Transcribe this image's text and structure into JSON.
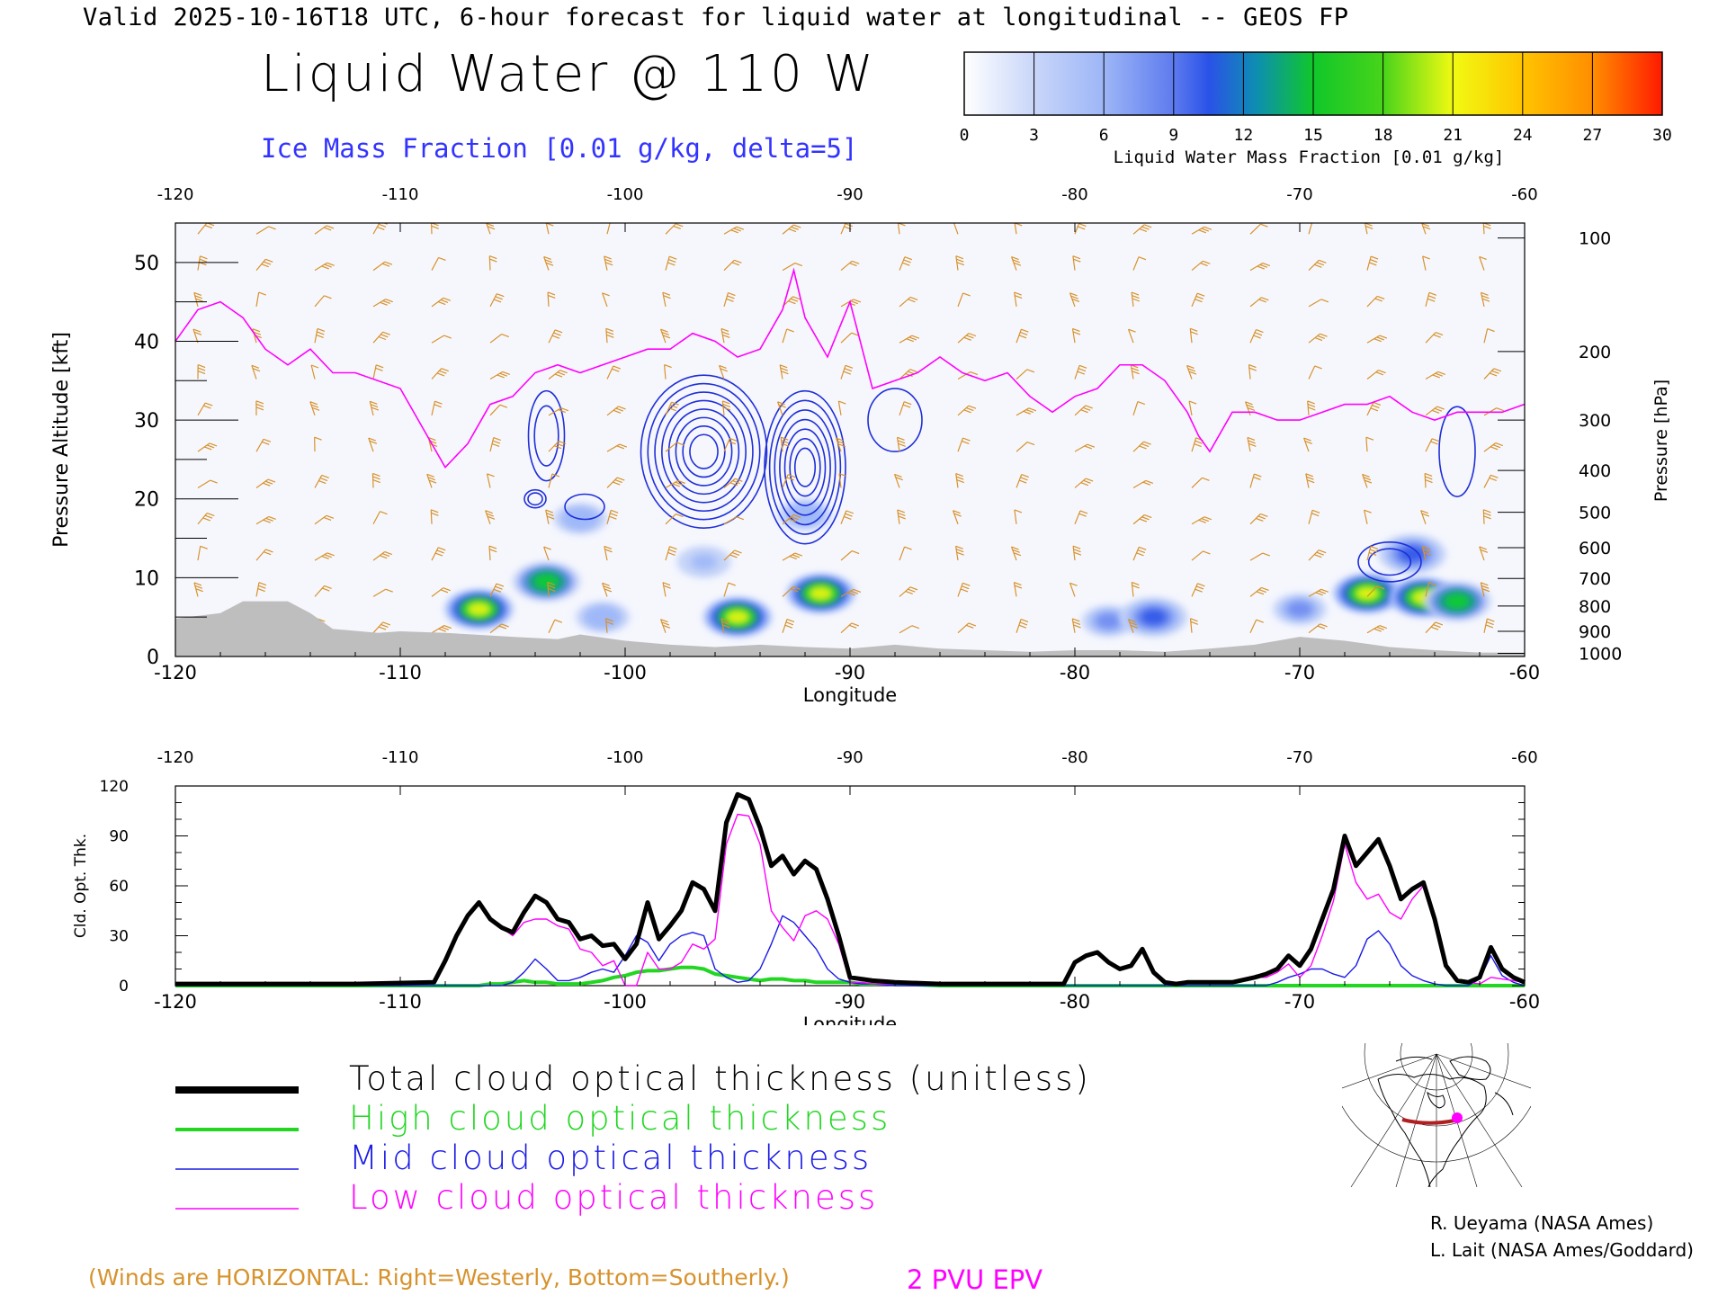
{
  "header": {
    "valid_line": "Valid 2025-10-16T18 UTC, 6-hour forecast for liquid water at longitudinal -- GEOS FP",
    "title": "Liquid Water @ 110 W",
    "ice_subtitle": "Ice Mass Fraction [0.01 g/kg, delta=5]"
  },
  "colorbar": {
    "title": "Liquid Water Mass Fraction [0.01 g/kg]",
    "ticks": [
      "0",
      "3",
      "6",
      "9",
      "12",
      "15",
      "18",
      "21",
      "24",
      "27",
      "30"
    ],
    "colors": [
      "#f4f6ff",
      "#c3d2f7",
      "#9fb8f8",
      "#6f8bf0",
      "#2f56e8",
      "#0f9a8a",
      "#10cf2e",
      "#7bd618",
      "#eff711",
      "#ffb400",
      "#ff8c00",
      "#ff1900"
    ]
  },
  "colors": {
    "ice_contour": "#1f2fd8",
    "epv": "#ff00ff",
    "wind": "#d7922c",
    "terrain": "#bebebe",
    "total": "#000000",
    "high": "#22d622",
    "mid": "#1a1ae6",
    "low": "#ff00ff"
  },
  "chart_data": [
    {
      "type": "heatmap",
      "title": "Liquid Water @ 110 W",
      "xlabel": "Longitude",
      "ylabel_left": "Pressure Altitude [kft]",
      "ylabel_right": "Pressure [hPa]",
      "xlim": [
        -120,
        -60
      ],
      "ylim_kft": [
        0,
        55
      ],
      "x_ticks": [
        "-120",
        "-110",
        "-100",
        "-90",
        "-80",
        "-70",
        "-60"
      ],
      "y_ticks": [
        "0",
        "10",
        "20",
        "30",
        "40",
        "50"
      ],
      "pressure_ticks": [
        "100",
        "200",
        "300",
        "400",
        "500",
        "600",
        "700",
        "800",
        "900",
        "1000"
      ],
      "pressure_tick_kft": [
        53.1,
        38.7,
        30.0,
        23.6,
        18.3,
        13.8,
        9.9,
        6.4,
        3.2,
        0.4
      ],
      "liquid_water_blobs": [
        {
          "lon": -106.5,
          "kft": 6.0,
          "max": 22
        },
        {
          "lon": -103.5,
          "kft": 9.5,
          "max": 19
        },
        {
          "lon": -101.0,
          "kft": 5.0,
          "max": 8
        },
        {
          "lon": -95.0,
          "kft": 5.0,
          "max": 23
        },
        {
          "lon": -91.3,
          "kft": 8.0,
          "max": 24
        },
        {
          "lon": -96.5,
          "kft": 12.0,
          "max": 7
        },
        {
          "lon": -92.0,
          "kft": 18.0,
          "max": 8
        },
        {
          "lon": -102.0,
          "kft": 17.5,
          "max": 8
        },
        {
          "lon": -78.5,
          "kft": 4.5,
          "max": 10
        },
        {
          "lon": -76.5,
          "kft": 5.0,
          "max": 13
        },
        {
          "lon": -67.0,
          "kft": 8.0,
          "max": 22
        },
        {
          "lon": -64.5,
          "kft": 7.5,
          "max": 22
        },
        {
          "lon": -63.0,
          "kft": 7.0,
          "max": 19
        },
        {
          "lon": -65.0,
          "kft": 13.0,
          "max": 11
        },
        {
          "lon": -70.0,
          "kft": 6.0,
          "max": 9
        }
      ],
      "epv_2pvu_line": {
        "lon": [
          -120,
          -119,
          -118,
          -117,
          -116,
          -115,
          -114,
          -113,
          -112,
          -110,
          -109,
          -108,
          -107,
          -106,
          -105,
          -104,
          -103,
          -102,
          -101,
          -100,
          -99,
          -98,
          -97,
          -96,
          -95,
          -94,
          -93,
          -92.5,
          -92,
          -91,
          -90,
          -89,
          -88,
          -87,
          -86,
          -85,
          -84,
          -83,
          -82,
          -81,
          -80,
          -79,
          -78,
          -77,
          -76,
          -75,
          -74.5,
          -74,
          -73,
          -72,
          -71,
          -70,
          -69,
          -68,
          -67,
          -66,
          -65,
          -64,
          -63,
          -62,
          -61,
          -60
        ],
        "kft": [
          40,
          44,
          45,
          43,
          39,
          37,
          39,
          36,
          36,
          34,
          29,
          24,
          27,
          32,
          33,
          36,
          37,
          36,
          37,
          38,
          39,
          39,
          41,
          40,
          38,
          39,
          44,
          49,
          43,
          38,
          45,
          34,
          35,
          36,
          38,
          36,
          35,
          36,
          33,
          31,
          33,
          34,
          37,
          37,
          35,
          31,
          28,
          26,
          31,
          31,
          30,
          30,
          31,
          32,
          32,
          33,
          31,
          30,
          31,
          31,
          31,
          32
        ]
      },
      "terrain_kft": {
        "lon": [
          -120,
          -118,
          -117,
          -115,
          -114,
          -113,
          -111,
          -110,
          -108,
          -105,
          -103,
          -102,
          -100,
          -98,
          -96,
          -94,
          -92,
          -90,
          -88,
          -86,
          -84,
          -82,
          -80,
          -78,
          -76,
          -74,
          -72,
          -70,
          -68,
          -66,
          -64,
          -62,
          -60
        ],
        "kft": [
          4.8,
          5.5,
          7.0,
          7.0,
          5.5,
          3.5,
          3.0,
          3.2,
          3.0,
          2.5,
          2.2,
          2.8,
          2.0,
          1.5,
          1.2,
          1.5,
          1.2,
          1.0,
          1.5,
          1.0,
          0.8,
          0.6,
          0.8,
          0.8,
          0.6,
          1.0,
          1.5,
          2.5,
          2.0,
          1.2,
          0.8,
          0.5,
          0.5
        ]
      },
      "ice_contour_max": 45
    },
    {
      "type": "line",
      "xlabel": "Longitude",
      "ylabel": "Cld. Opt. Thk.",
      "xlim": [
        -120,
        -60
      ],
      "ylim": [
        0,
        120
      ],
      "x_ticks": [
        "-120",
        "-110",
        "-100",
        "-90",
        "-80",
        "-70",
        "-60"
      ],
      "y_ticks": [
        "0",
        "30",
        "60",
        "90",
        "120"
      ],
      "x": [
        -120,
        -112,
        -108.5,
        -108,
        -107.5,
        -107,
        -106.5,
        -106,
        -105.5,
        -105,
        -104.5,
        -104,
        -103.5,
        -103,
        -102.5,
        -102,
        -101.5,
        -101,
        -100.5,
        -100,
        -99.5,
        -99,
        -98.5,
        -98,
        -97.5,
        -97,
        -96.5,
        -96,
        -95.5,
        -95,
        -94.5,
        -94,
        -93.5,
        -93,
        -92.5,
        -92,
        -91.5,
        -91,
        -90.5,
        -90,
        -89.5,
        -89,
        -88,
        -86,
        -84,
        -82,
        -80.5,
        -80,
        -79.5,
        -79,
        -78.5,
        -78,
        -77.5,
        -77,
        -76.5,
        -76,
        -75.5,
        -75,
        -74,
        -73,
        -72,
        -71.5,
        -71,
        -70.5,
        -70,
        -69.5,
        -69,
        -68.5,
        -68,
        -67.5,
        -67,
        -66.5,
        -66,
        -65.5,
        -65,
        -64.5,
        -64,
        -63.5,
        -63,
        -62.5,
        -62,
        -61.5,
        -61,
        -60.5,
        -60
      ],
      "series": [
        {
          "name": "Total cloud optical thickness (unitless)",
          "values": [
            1,
            1,
            2,
            15,
            30,
            42,
            50,
            40,
            35,
            32,
            44,
            54,
            50,
            40,
            38,
            28,
            30,
            24,
            25,
            16,
            25,
            50,
            28,
            36,
            45,
            62,
            58,
            45,
            98,
            115,
            112,
            95,
            72,
            78,
            67,
            75,
            70,
            52,
            30,
            5,
            4,
            3,
            2,
            1,
            1,
            1,
            1,
            14,
            18,
            20,
            14,
            10,
            12,
            22,
            8,
            2,
            1,
            2,
            2,
            2,
            5,
            7,
            10,
            18,
            12,
            22,
            40,
            58,
            90,
            72,
            80,
            88,
            72,
            52,
            58,
            62,
            40,
            12,
            3,
            2,
            5,
            23,
            10,
            5,
            2
          ]
        },
        {
          "name": "High cloud optical thickness",
          "values": [
            0,
            0,
            0,
            0,
            0,
            0,
            0,
            1,
            1,
            2,
            3,
            2,
            2,
            1,
            1,
            1,
            2,
            3,
            5,
            6,
            8,
            9,
            9,
            10,
            11,
            11,
            10,
            7,
            6,
            5,
            4,
            3,
            4,
            4,
            3,
            3,
            2,
            2,
            2,
            2,
            1,
            1,
            1,
            0,
            0,
            0,
            0,
            0,
            0,
            0,
            0,
            0,
            0,
            0,
            0,
            0,
            0,
            0,
            0,
            0,
            0,
            0,
            0,
            0,
            0,
            0,
            0,
            0,
            0,
            0,
            0,
            0,
            0,
            0,
            0,
            0,
            0,
            0,
            0,
            0,
            0,
            0,
            0,
            0,
            0
          ]
        },
        {
          "name": "Mid cloud optical thickness",
          "values": [
            0,
            0,
            0,
            0,
            0,
            0,
            0,
            0,
            0,
            2,
            8,
            16,
            10,
            3,
            3,
            5,
            8,
            10,
            8,
            18,
            30,
            26,
            15,
            25,
            30,
            32,
            30,
            10,
            5,
            2,
            3,
            10,
            25,
            42,
            38,
            30,
            22,
            10,
            4,
            2,
            1,
            1,
            0,
            0,
            0,
            0,
            0,
            0,
            0,
            0,
            0,
            0,
            0,
            0,
            0,
            0,
            0,
            0,
            0,
            0,
            0,
            0,
            2,
            5,
            7,
            10,
            10,
            7,
            5,
            12,
            28,
            33,
            25,
            12,
            6,
            3,
            1,
            0,
            0,
            0,
            4,
            18,
            6,
            2,
            0
          ]
        },
        {
          "name": "Low cloud optical thickness",
          "values": [
            1,
            1,
            2,
            15,
            30,
            42,
            50,
            40,
            35,
            30,
            38,
            40,
            40,
            36,
            34,
            22,
            20,
            12,
            15,
            0,
            0,
            20,
            10,
            10,
            14,
            25,
            22,
            28,
            85,
            103,
            102,
            85,
            45,
            35,
            27,
            42,
            45,
            40,
            25,
            2,
            2,
            1,
            1,
            1,
            1,
            1,
            1,
            14,
            18,
            20,
            14,
            10,
            12,
            22,
            8,
            2,
            1,
            2,
            2,
            2,
            5,
            5,
            8,
            13,
            5,
            12,
            30,
            51,
            85,
            62,
            52,
            55,
            44,
            40,
            52,
            60,
            38,
            12,
            3,
            2,
            1,
            5,
            4,
            3,
            2
          ]
        }
      ]
    }
  ],
  "legend": {
    "total": "Total cloud optical thickness (unitless)",
    "high": "High cloud optical thickness",
    "mid": "Mid cloud optical thickness",
    "low": "Low cloud optical thickness"
  },
  "footer": {
    "winds_note": "(Winds are HORIZONTAL: Right=Westerly, Bottom=Southerly.)",
    "pvu_note": "2 PVU EPV",
    "credit1": "R. Ueyama (NASA Ames)",
    "credit2": "L. Lait (NASA Ames/Goddard)"
  }
}
